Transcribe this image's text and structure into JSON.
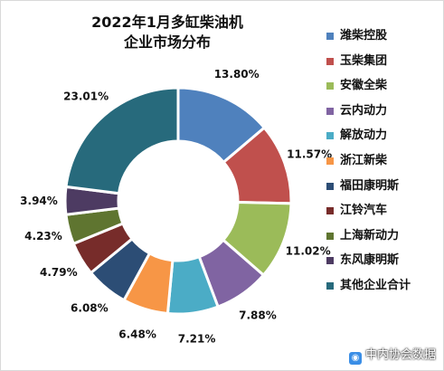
{
  "chart_data": {
    "type": "pie",
    "donut": true,
    "title_line1": "2022年1月多缸柴油机",
    "title_line2": "企业市场分布",
    "legend_position": "right",
    "slices": [
      {
        "name": "潍柴控股",
        "value": 13.8,
        "label": "13.80%",
        "color": "#4f81bd"
      },
      {
        "name": "玉柴集团",
        "value": 11.57,
        "label": "11.57%",
        "color": "#c0504d"
      },
      {
        "name": "安徽全柴",
        "value": 11.02,
        "label": "11.02%",
        "color": "#9bbb59"
      },
      {
        "name": "云内动力",
        "value": 7.88,
        "label": "7.88%",
        "color": "#8064a2"
      },
      {
        "name": "解放动力",
        "value": 7.21,
        "label": "7.21%",
        "color": "#4bacc6"
      },
      {
        "name": "浙江新柴",
        "value": 6.48,
        "label": "6.48%",
        "color": "#f79646"
      },
      {
        "name": "福田康明斯",
        "value": 6.08,
        "label": "6.08%",
        "color": "#2c4d75"
      },
      {
        "name": "江铃汽车",
        "value": 4.79,
        "label": "4.79%",
        "color": "#772c2a"
      },
      {
        "name": "上海新动力",
        "value": 4.23,
        "label": "4.23%",
        "color": "#5f7530"
      },
      {
        "name": "东风康明斯",
        "value": 3.94,
        "label": "3.94%",
        "color": "#4d3b62"
      },
      {
        "name": "其他企业合计",
        "value": 23.01,
        "label": "23.01%",
        "color": "#276a7c"
      }
    ]
  },
  "watermark": {
    "icon": "chat-bubble-icon",
    "text": "中内协会数据"
  }
}
